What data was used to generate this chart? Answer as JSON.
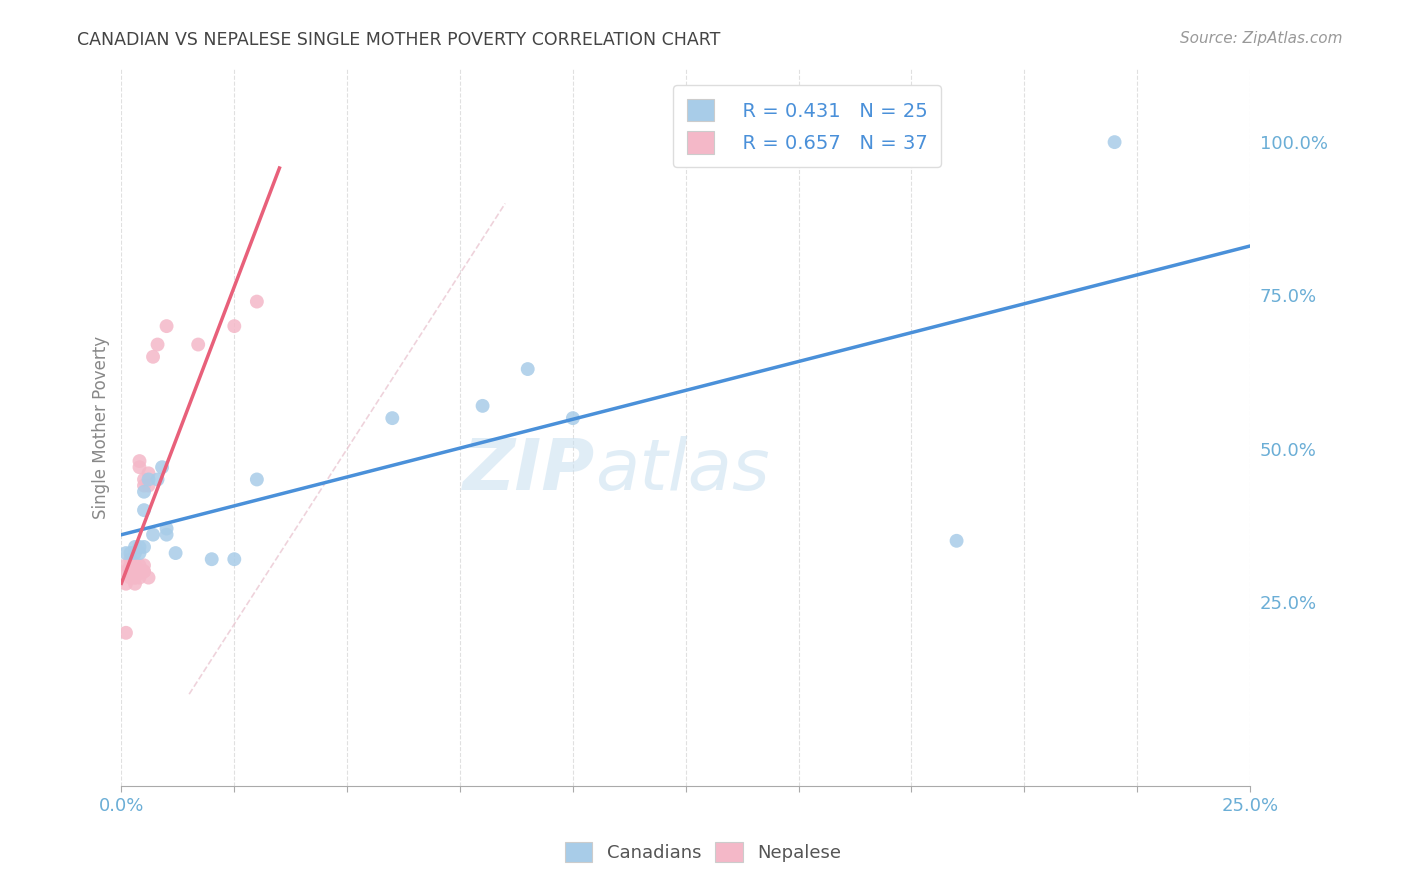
{
  "title": "CANADIAN VS NEPALESE SINGLE MOTHER POVERTY CORRELATION CHART",
  "source": "Source: ZipAtlas.com",
  "ylabel": "Single Mother Poverty",
  "xlim": [
    0.0,
    0.25
  ],
  "ylim": [
    -0.05,
    1.12
  ],
  "y_ticks_right": [
    0.25,
    0.5,
    0.75,
    1.0
  ],
  "y_tick_labels_right": [
    "25.0%",
    "50.0%",
    "75.0%",
    "100.0%"
  ],
  "legend_r_canadian": "R = 0.431",
  "legend_n_canadian": "N = 25",
  "legend_r_nepalese": "R = 0.657",
  "legend_n_nepalese": "N = 37",
  "canadian_color": "#a8cce8",
  "nepalese_color": "#f4b8c8",
  "canadian_line_color": "#4a90d9",
  "nepalese_line_color": "#e8607a",
  "canadian_scatter_x": [
    0.001,
    0.002,
    0.003,
    0.003,
    0.004,
    0.004,
    0.005,
    0.005,
    0.005,
    0.006,
    0.007,
    0.008,
    0.009,
    0.01,
    0.01,
    0.012,
    0.02,
    0.025,
    0.03,
    0.06,
    0.08,
    0.09,
    0.1,
    0.185,
    0.22
  ],
  "canadian_scatter_y": [
    0.33,
    0.33,
    0.33,
    0.34,
    0.33,
    0.34,
    0.34,
    0.4,
    0.43,
    0.45,
    0.36,
    0.45,
    0.47,
    0.36,
    0.37,
    0.33,
    0.32,
    0.32,
    0.45,
    0.55,
    0.57,
    0.63,
    0.55,
    0.35,
    1.0
  ],
  "nepalese_scatter_x": [
    0.001,
    0.001,
    0.001,
    0.001,
    0.002,
    0.002,
    0.002,
    0.002,
    0.002,
    0.002,
    0.002,
    0.003,
    0.003,
    0.003,
    0.003,
    0.003,
    0.003,
    0.004,
    0.004,
    0.004,
    0.004,
    0.004,
    0.004,
    0.005,
    0.005,
    0.005,
    0.005,
    0.005,
    0.006,
    0.006,
    0.006,
    0.007,
    0.008,
    0.01,
    0.017,
    0.025,
    0.03
  ],
  "nepalese_scatter_y": [
    0.3,
    0.31,
    0.28,
    0.2,
    0.29,
    0.3,
    0.31,
    0.3,
    0.31,
    0.32,
    0.3,
    0.29,
    0.3,
    0.3,
    0.31,
    0.28,
    0.29,
    0.3,
    0.29,
    0.31,
    0.3,
    0.47,
    0.48,
    0.3,
    0.31,
    0.44,
    0.45,
    0.3,
    0.44,
    0.46,
    0.29,
    0.65,
    0.67,
    0.7,
    0.67,
    0.7,
    0.74
  ],
  "watermark_zip": "ZIP",
  "watermark_atlas": "atlas",
  "background_color": "#ffffff",
  "grid_color": "#dddddd",
  "title_color": "#444444",
  "axis_tick_color": "#6baed6",
  "marker_size": 100,
  "ref_line_color": "#e0c0c8"
}
